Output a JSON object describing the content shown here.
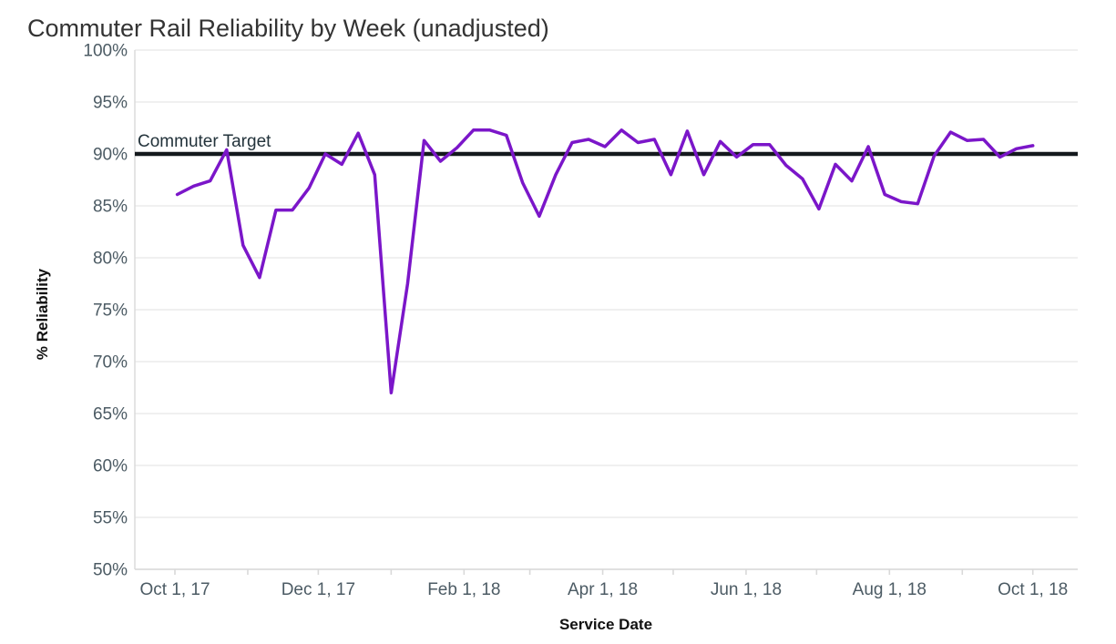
{
  "title": "Commuter Rail Reliability by Week (unadjusted)",
  "colors": {
    "line": "#7b16c9",
    "target_line": "#14191d",
    "grid": "#ebebeb",
    "domain": "#d9d9d9",
    "tick_text": "#4c5b64",
    "title_text": "#333333",
    "axis_title_text": "#111111",
    "target_text": "#23333b"
  },
  "chart_data": {
    "type": "line",
    "title": "Commuter Rail Reliability by Week (unadjusted)",
    "xlabel": "Service Date",
    "ylabel": "% Reliability",
    "ylim": [
      50,
      100
    ],
    "grid": "horizontal-only",
    "legend": "none",
    "target": {
      "label": "Commuter Target",
      "value": 90
    },
    "y_ticks": [
      {
        "label": "100%",
        "value": 100
      },
      {
        "label": "95%",
        "value": 95
      },
      {
        "label": "90%",
        "value": 90
      },
      {
        "label": "85%",
        "value": 85
      },
      {
        "label": "80%",
        "value": 80
      },
      {
        "label": "75%",
        "value": 75
      },
      {
        "label": "70%",
        "value": 70
      },
      {
        "label": "65%",
        "value": 65
      },
      {
        "label": "60%",
        "value": 60
      },
      {
        "label": "55%",
        "value": 55
      },
      {
        "label": "50%",
        "value": 50
      }
    ],
    "x_ticks": [
      {
        "label": "Oct 1, 17",
        "day": 0
      },
      {
        "label": "",
        "day": 31
      },
      {
        "label": "Dec 1, 17",
        "day": 61
      },
      {
        "label": "",
        "day": 92
      },
      {
        "label": "Feb 1, 18",
        "day": 123
      },
      {
        "label": "",
        "day": 151
      },
      {
        "label": "Apr 1, 18",
        "day": 182
      },
      {
        "label": "",
        "day": 212
      },
      {
        "label": "Jun 1, 18",
        "day": 243
      },
      {
        "label": "",
        "day": 273
      },
      {
        "label": "Aug 1, 18",
        "day": 304
      },
      {
        "label": "",
        "day": 335
      },
      {
        "label": "Oct 1, 18",
        "day": 365
      }
    ],
    "series": [
      {
        "name": "% Reliability by week",
        "color": "#7b16c9",
        "week_start_dates": [
          "2017-10-02",
          "2017-10-09",
          "2017-10-16",
          "2017-10-23",
          "2017-10-30",
          "2017-11-06",
          "2017-11-13",
          "2017-11-20",
          "2017-11-27",
          "2017-12-04",
          "2017-12-11",
          "2017-12-18",
          "2017-12-25",
          "2018-01-01",
          "2018-01-08",
          "2018-01-15",
          "2018-01-22",
          "2018-01-29",
          "2018-02-05",
          "2018-02-12",
          "2018-02-19",
          "2018-02-26",
          "2018-03-05",
          "2018-03-12",
          "2018-03-19",
          "2018-03-26",
          "2018-04-02",
          "2018-04-09",
          "2018-04-16",
          "2018-04-23",
          "2018-04-30",
          "2018-05-07",
          "2018-05-14",
          "2018-05-21",
          "2018-05-28",
          "2018-06-04",
          "2018-06-11",
          "2018-06-18",
          "2018-06-25",
          "2018-07-02",
          "2018-07-09",
          "2018-07-16",
          "2018-07-23",
          "2018-07-30",
          "2018-08-06",
          "2018-08-13",
          "2018-08-20",
          "2018-08-27",
          "2018-09-03",
          "2018-09-10",
          "2018-09-17",
          "2018-09-24",
          "2018-10-01"
        ],
        "values": [
          86.1,
          86.9,
          87.4,
          90.4,
          81.2,
          78.1,
          84.6,
          84.6,
          86.7,
          90.0,
          89.0,
          92.0,
          88.0,
          67.0,
          77.5,
          91.3,
          89.3,
          90.6,
          92.3,
          92.3,
          91.8,
          87.2,
          84.0,
          88.0,
          91.1,
          91.4,
          90.7,
          92.3,
          91.1,
          91.4,
          88.0,
          92.2,
          88.0,
          91.2,
          89.7,
          90.9,
          90.9,
          88.9,
          87.6,
          84.7,
          89.0,
          87.4,
          90.7,
          86.1,
          85.4,
          85.2,
          89.8,
          92.1,
          91.3,
          91.4,
          89.7,
          90.5,
          90.8
        ]
      }
    ]
  }
}
